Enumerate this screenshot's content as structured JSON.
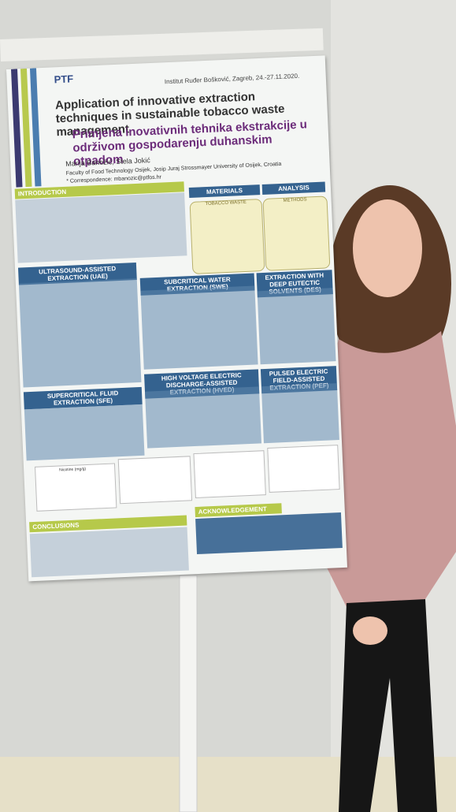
{
  "poster": {
    "venue": "Institut Ruđer Bošković, Zagreb, 24.-27.11.2020.",
    "logo": "PTF",
    "title_en": "Application of innovative extraction techniques in sustainable tobacco waste management",
    "title_hr": "Primjena inovativnih tehnika ekstrakcije u održivom gospodarenju duhanskim otpadom",
    "authors": "Marija Banožić, Stela Jokić",
    "affiliation": "Faculty of Food Technology Osijek, Josip Juraj Strossmayer University of Osijek, Croatia",
    "correspondence": "* Correspondence: mbanozic@ptfos.hr",
    "sections": [
      "INTRODUCTION",
      "MATERIALS",
      "ANALYSIS",
      "ULTRASOUND-ASSISTED EXTRACTION (UAE)",
      "SUBCRITICAL WATER EXTRACTION (SWE)",
      "EXTRACTION WITH DEEP EUTECTIC SOLVENTS (DES)",
      "SUPERCRITICAL FLUID EXTRACTION (SFE)",
      "HIGH VOLTAGE ELECTRIC DISCHARGE-ASSISTED EXTRACTION (HVED)",
      "PULSED ELECTRIC FIELD-ASSISTED EXTRACTION (PEF)",
      "CONCLUSIONS",
      "ACKNOWLEDGEMENT"
    ],
    "tobacco_waste": "TOBACCO WASTE",
    "methods": "METHODS",
    "chart_label": "Nicotine (mg/g)"
  }
}
